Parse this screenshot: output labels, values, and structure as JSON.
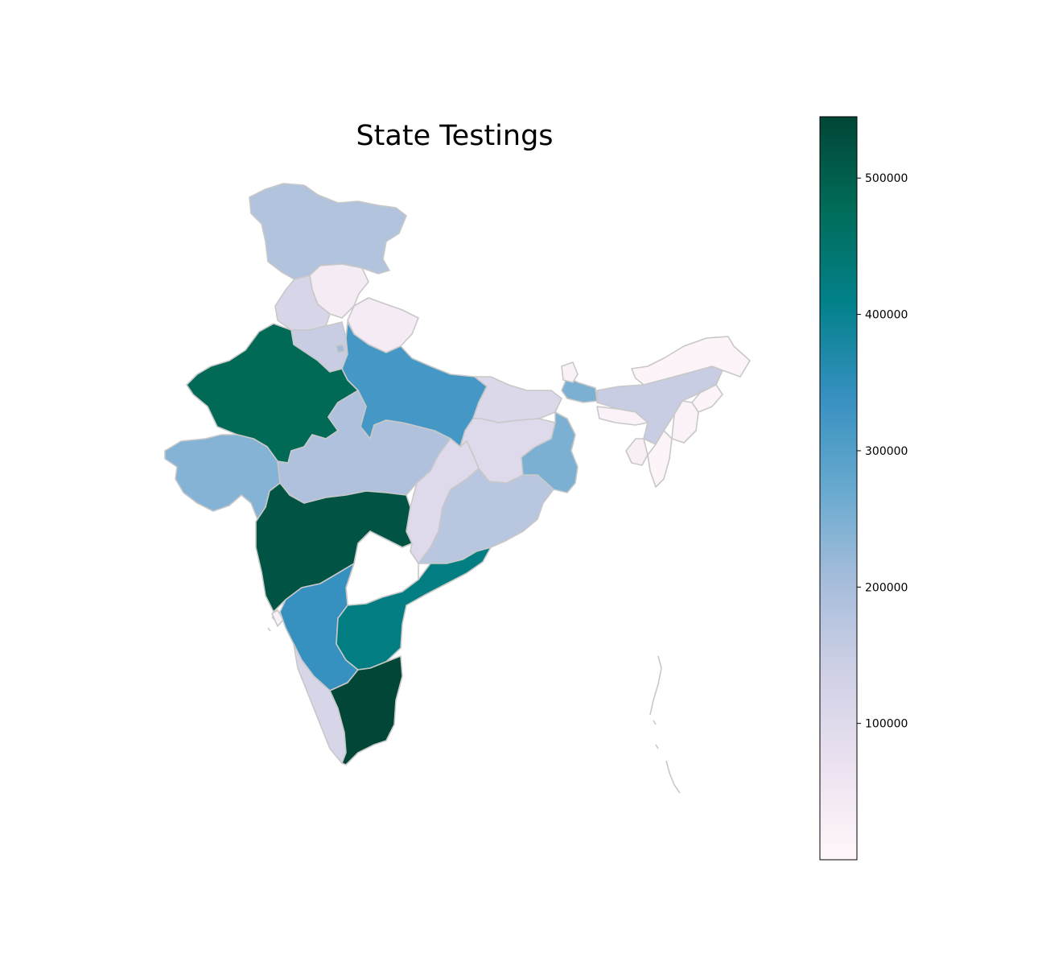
{
  "title": "State Testings",
  "colormap": {
    "name": "PuBuGn",
    "stops": [
      "#fff7fb",
      "#ece2f0",
      "#d0d1e6",
      "#a6bddb",
      "#67a9cf",
      "#3690c0",
      "#02818a",
      "#016c59",
      "#014636"
    ]
  },
  "colorbar": {
    "range": [
      0,
      545000
    ],
    "ticks": [
      {
        "value": 100000,
        "label": "100000"
      },
      {
        "value": 200000,
        "label": "200000"
      },
      {
        "value": 300000,
        "label": "300000"
      },
      {
        "value": 400000,
        "label": "400000"
      },
      {
        "value": 500000,
        "label": "500000"
      }
    ]
  },
  "regions": [
    {
      "id": "jammu-kashmir",
      "value": 185000
    },
    {
      "id": "himachal-pradesh",
      "value": 40000
    },
    {
      "id": "punjab",
      "value": 120000
    },
    {
      "id": "haryana",
      "value": 150000
    },
    {
      "id": "uttarakhand",
      "value": 40000
    },
    {
      "id": "rajasthan",
      "value": 480000
    },
    {
      "id": "uttar-pradesh",
      "value": 320000
    },
    {
      "id": "madhya-pradesh",
      "value": 190000
    },
    {
      "id": "gujarat",
      "value": 240000
    },
    {
      "id": "maharashtra",
      "value": 520000
    },
    {
      "id": "bihar",
      "value": 110000
    },
    {
      "id": "jharkhand",
      "value": 100000
    },
    {
      "id": "west-bengal",
      "value": 250000
    },
    {
      "id": "chhattisgarh",
      "value": 100000
    },
    {
      "id": "odisha",
      "value": 175000
    },
    {
      "id": "karnataka",
      "value": 340000
    },
    {
      "id": "andhra-pradesh",
      "value": 420000
    },
    {
      "id": "tamil-nadu",
      "value": 545000
    },
    {
      "id": "kerala",
      "value": 120000
    },
    {
      "id": "goa",
      "value": 20000
    },
    {
      "id": "sikkim",
      "value": 20000
    },
    {
      "id": "assam",
      "value": 150000
    },
    {
      "id": "arunachal-pradesh",
      "value": 10000
    },
    {
      "id": "meghalaya",
      "value": 15000
    },
    {
      "id": "nagaland",
      "value": 10000
    },
    {
      "id": "manipur",
      "value": 15000
    },
    {
      "id": "mizoram",
      "value": 10000
    },
    {
      "id": "tripura",
      "value": 30000
    },
    {
      "id": "delhi",
      "value": 210000
    }
  ]
}
